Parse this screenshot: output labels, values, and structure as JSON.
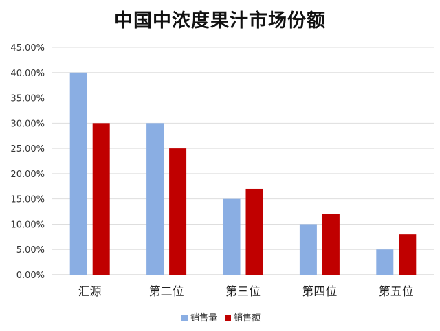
{
  "chart_data": {
    "type": "bar",
    "title": "中国中浓度果汁市场份额",
    "xlabel": "",
    "ylabel": "",
    "categories": [
      "汇源",
      "第二位",
      "第三位",
      "第四位",
      "第五位"
    ],
    "series": [
      {
        "name": "销售量",
        "color": "#8aaee3",
        "values": [
          40,
          30,
          15,
          10,
          5
        ]
      },
      {
        "name": "销售额",
        "color": "#c00000",
        "values": [
          30,
          25,
          17,
          12,
          8
        ]
      }
    ],
    "ylim": [
      0,
      45
    ],
    "yticks": [
      "0.00%",
      "5.00%",
      "10.00%",
      "15.00%",
      "20.00%",
      "25.00%",
      "30.00%",
      "35.00%",
      "40.00%",
      "45.00%"
    ],
    "grid": true,
    "legend": "bottom"
  }
}
